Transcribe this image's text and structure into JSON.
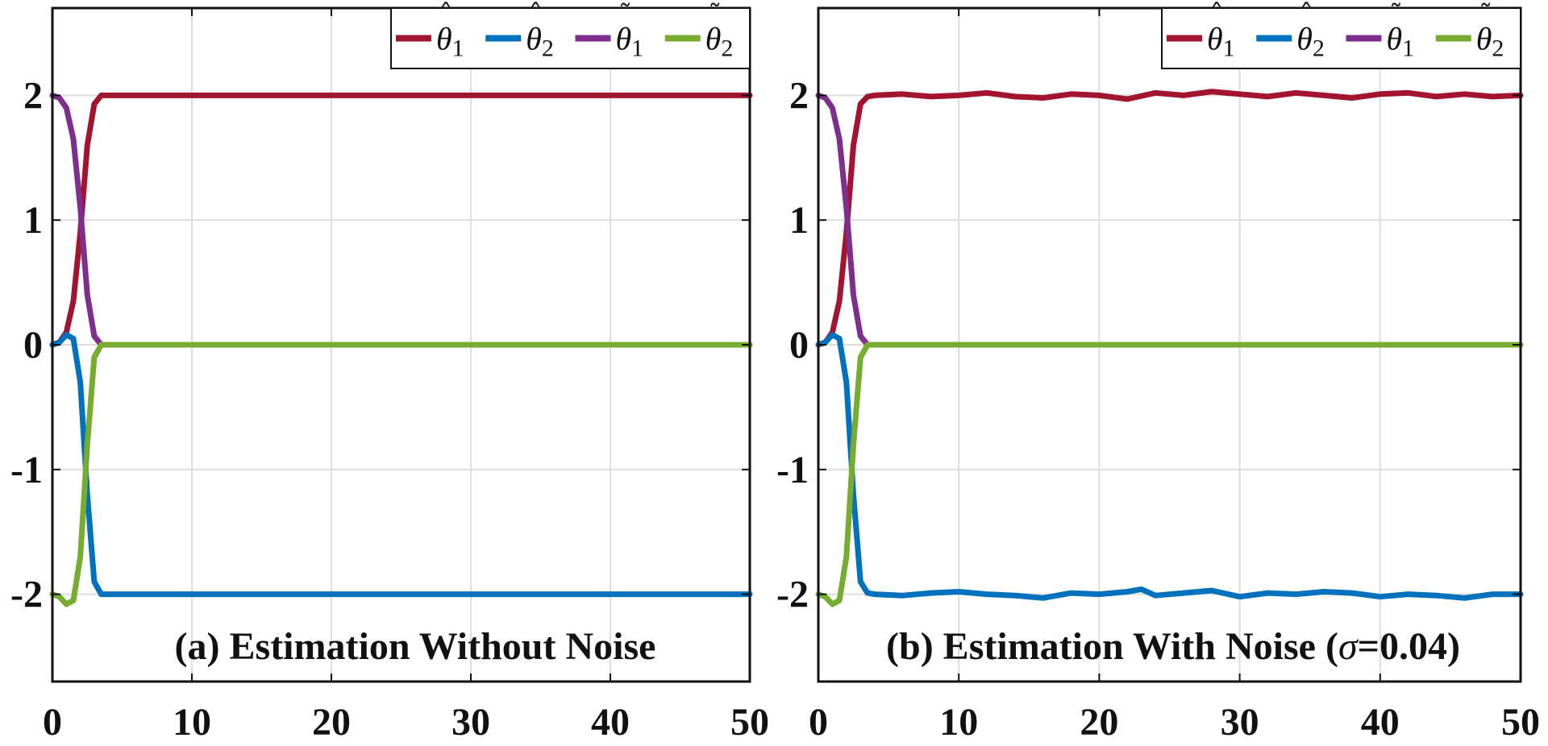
{
  "chart_data": [
    {
      "type": "line",
      "panel": "a",
      "title": "(a) Estimation Without Noise",
      "xlabel": "",
      "ylabel": "",
      "xlim": [
        0,
        50
      ],
      "ylim": [
        -2.7,
        2.7
      ],
      "xticks": [
        0,
        10,
        20,
        30,
        40,
        50
      ],
      "yticks": [
        -2,
        -1,
        0,
        1,
        2
      ],
      "xtick_labels": [
        "0",
        "10",
        "20",
        "30",
        "40",
        "50"
      ],
      "ytick_labels": [
        "-2",
        "-1",
        "0",
        "1",
        "2"
      ],
      "grid": true,
      "legend_position": "top-right",
      "series": [
        {
          "name": "θ̂1",
          "base": "θ",
          "accent": "hat",
          "sub": "1",
          "color": "#A2142F",
          "x": [
            0,
            0.5,
            1,
            1.5,
            2,
            2.5,
            3,
            3.5,
            4,
            5,
            10,
            20,
            30,
            40,
            50
          ],
          "y": [
            0,
            0.02,
            0.1,
            0.35,
            0.9,
            1.6,
            1.93,
            2.0,
            2.0,
            2.0,
            2.0,
            2.0,
            2.0,
            2.0,
            2.0
          ]
        },
        {
          "name": "θ̂2",
          "base": "θ",
          "accent": "hat",
          "sub": "2",
          "color": "#0072BD",
          "x": [
            0,
            0.5,
            1,
            1.5,
            2,
            2.5,
            3,
            3.5,
            4,
            5,
            10,
            20,
            30,
            40,
            50
          ],
          "y": [
            0,
            0.02,
            0.08,
            0.05,
            -0.3,
            -1.2,
            -1.9,
            -2.0,
            -2.0,
            -2.0,
            -2.0,
            -2.0,
            -2.0,
            -2.0,
            -2.0
          ]
        },
        {
          "name": "θ̃1",
          "base": "θ",
          "accent": "tilde",
          "sub": "1",
          "color": "#7E2F8E",
          "x": [
            0,
            0.5,
            1,
            1.5,
            2,
            2.5,
            3,
            3.5,
            4,
            5,
            10,
            20,
            30,
            40,
            50
          ],
          "y": [
            2.0,
            1.98,
            1.9,
            1.65,
            1.1,
            0.4,
            0.07,
            0.0,
            0.0,
            0.0,
            0.0,
            0.0,
            0.0,
            0.0,
            0.0
          ]
        },
        {
          "name": "θ̃2",
          "base": "θ",
          "accent": "tilde",
          "sub": "2",
          "color": "#77AC30",
          "x": [
            0,
            0.5,
            1,
            1.5,
            2,
            2.5,
            3,
            3.5,
            4,
            5,
            10,
            20,
            30,
            40,
            50
          ],
          "y": [
            -2.0,
            -2.02,
            -2.08,
            -2.05,
            -1.7,
            -0.8,
            -0.1,
            0.0,
            0.0,
            0.0,
            0.0,
            0.0,
            0.0,
            0.0,
            0.0
          ]
        }
      ]
    },
    {
      "type": "line",
      "panel": "b",
      "title_prefix": "(b) Estimation With Noise (",
      "title_symbol": "σ",
      "title_suffix": "=0.04)",
      "xlabel": "",
      "ylabel": "",
      "xlim": [
        0,
        50
      ],
      "ylim": [
        -2.7,
        2.7
      ],
      "xticks": [
        0,
        10,
        20,
        30,
        40,
        50
      ],
      "yticks": [
        -2,
        -1,
        0,
        1,
        2
      ],
      "xtick_labels": [
        "0",
        "10",
        "20",
        "30",
        "40",
        "50"
      ],
      "ytick_labels": [
        "-2",
        "-1",
        "0",
        "1",
        "2"
      ],
      "grid": true,
      "legend_position": "top-right",
      "series": [
        {
          "name": "θ̂1",
          "base": "θ",
          "accent": "hat",
          "sub": "1",
          "color": "#A2142F",
          "x": [
            0,
            0.5,
            1,
            1.5,
            2,
            2.5,
            3,
            3.5,
            4,
            6,
            8,
            10,
            12,
            14,
            16,
            18,
            20,
            22,
            24,
            26,
            28,
            30,
            32,
            34,
            36,
            38,
            40,
            42,
            44,
            46,
            48,
            50
          ],
          "y": [
            0,
            0.02,
            0.1,
            0.35,
            0.9,
            1.6,
            1.93,
            1.99,
            2.0,
            2.01,
            1.99,
            2.0,
            2.02,
            1.99,
            1.98,
            2.01,
            2.0,
            1.97,
            2.02,
            2.0,
            2.03,
            2.01,
            1.99,
            2.02,
            2.0,
            1.98,
            2.01,
            2.02,
            1.99,
            2.01,
            1.99,
            2.0
          ]
        },
        {
          "name": "θ̂2",
          "base": "θ",
          "accent": "hat",
          "sub": "2",
          "color": "#0072BD",
          "x": [
            0,
            0.5,
            1,
            1.5,
            2,
            2.5,
            3,
            3.5,
            4,
            6,
            8,
            10,
            12,
            14,
            16,
            18,
            20,
            22,
            23,
            24,
            26,
            28,
            30,
            32,
            34,
            36,
            38,
            40,
            42,
            44,
            46,
            48,
            50
          ],
          "y": [
            0,
            0.02,
            0.08,
            0.05,
            -0.3,
            -1.2,
            -1.9,
            -1.99,
            -2.0,
            -2.01,
            -1.99,
            -1.98,
            -2.0,
            -2.01,
            -2.03,
            -1.99,
            -2.0,
            -1.98,
            -1.96,
            -2.01,
            -1.99,
            -1.97,
            -2.02,
            -1.99,
            -2.0,
            -1.98,
            -1.99,
            -2.02,
            -2.0,
            -2.01,
            -2.03,
            -2.0,
            -2.0
          ]
        },
        {
          "name": "θ̃1",
          "base": "θ",
          "accent": "tilde",
          "sub": "1",
          "color": "#7E2F8E",
          "x": [
            0,
            0.5,
            1,
            1.5,
            2,
            2.5,
            3,
            3.5,
            4,
            5,
            10,
            20,
            30,
            40,
            50
          ],
          "y": [
            2.0,
            1.98,
            1.9,
            1.65,
            1.1,
            0.4,
            0.07,
            0.0,
            0.0,
            0.0,
            0.0,
            0.0,
            0.0,
            0.0,
            0.0
          ]
        },
        {
          "name": "θ̃2",
          "base": "θ",
          "accent": "tilde",
          "sub": "2",
          "color": "#77AC30",
          "x": [
            0,
            0.5,
            1,
            1.5,
            2,
            2.5,
            3,
            3.5,
            4,
            5,
            10,
            20,
            30,
            40,
            50
          ],
          "y": [
            -2.0,
            -2.02,
            -2.08,
            -2.05,
            -1.7,
            -0.8,
            -0.1,
            0.0,
            0.0,
            0.0,
            0.0,
            0.0,
            0.0,
            0.0,
            0.0
          ]
        }
      ]
    }
  ]
}
